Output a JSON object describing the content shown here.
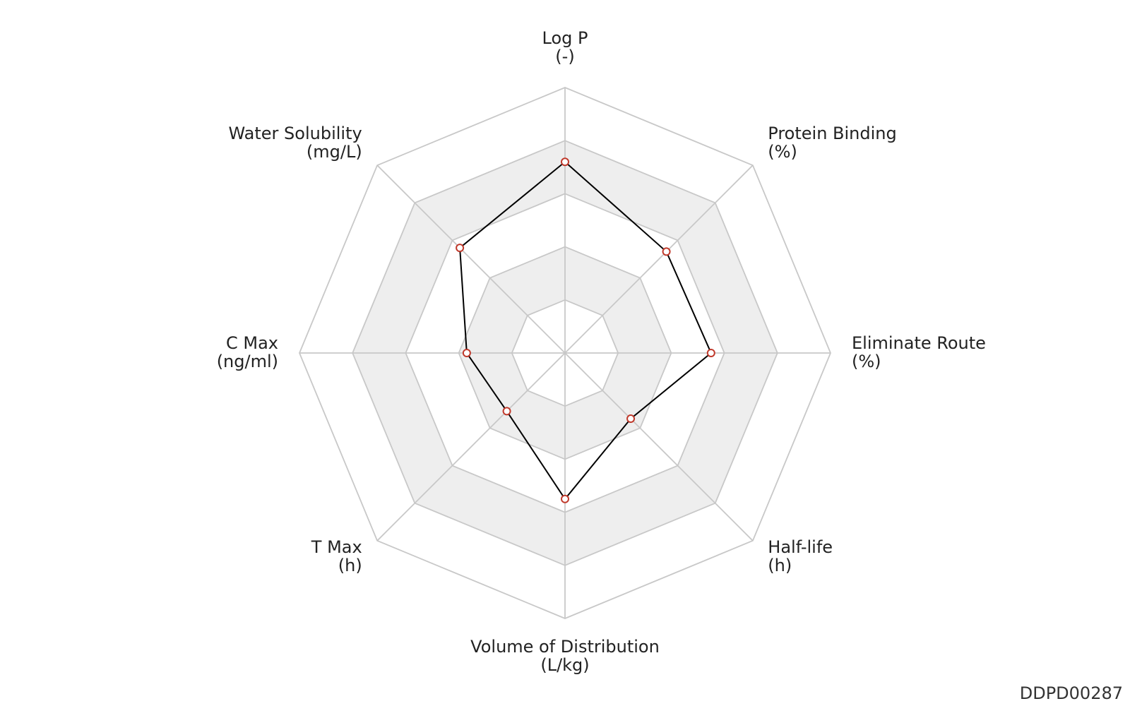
{
  "chart_data": {
    "type": "radar",
    "title": "",
    "axes": [
      {
        "name": "Log P",
        "unit": "(-)"
      },
      {
        "name": "Protein Binding",
        "unit": "(%)"
      },
      {
        "name": "Eliminate Route",
        "unit": "(%)"
      },
      {
        "name": "Half-life",
        "unit": "(h)"
      },
      {
        "name": "Volume of Distribution",
        "unit": "(L/kg)"
      },
      {
        "name": "T Max",
        "unit": "(h)"
      },
      {
        "name": "C Max",
        "unit": "(ng/ml)"
      },
      {
        "name": "Water Solubility",
        "unit": "(mg/L)"
      }
    ],
    "range": [
      0,
      1
    ],
    "rings": 5,
    "series": [
      {
        "values": [
          0.72,
          0.54,
          0.55,
          0.35,
          0.55,
          0.31,
          0.37,
          0.56
        ],
        "line_color": "#000000",
        "marker_color": "#c0392b"
      }
    ],
    "band_colors": [
      "#ffffff",
      "#eeeeee"
    ],
    "grid_color": "#c8c8c8",
    "legend": "none"
  },
  "footer": {
    "id": "DDPD00287"
  }
}
